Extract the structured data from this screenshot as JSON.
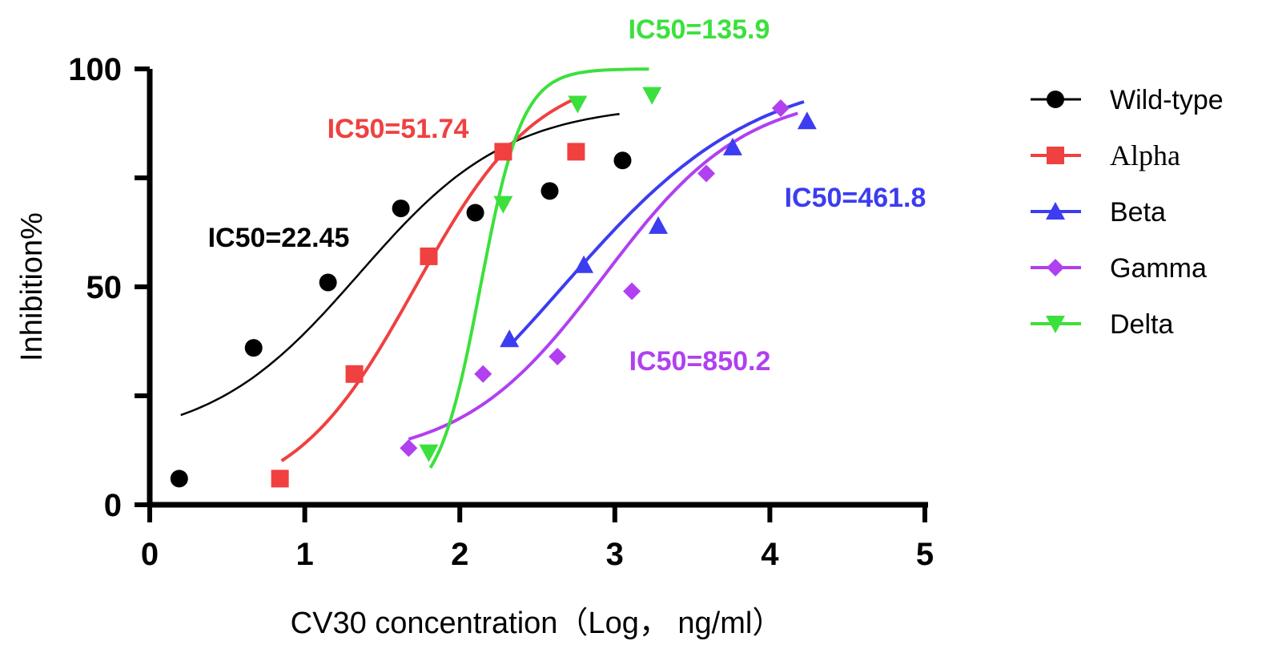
{
  "chart_data": {
    "type": "scatter",
    "title": "",
    "xlabel": "CV30 concentration（Log， ng/ml）",
    "ylabel": "Inhibition%",
    "xlim": [
      0,
      5
    ],
    "ylim": [
      0,
      100
    ],
    "x_ticks": [
      "0",
      "1",
      "2",
      "3",
      "4",
      "5"
    ],
    "y_ticks": [
      "0",
      "50",
      "100"
    ],
    "grid": false,
    "legend_position": "right",
    "series": [
      {
        "name": "Wild-type",
        "color": "#000000",
        "marker": "circle",
        "x": [
          0.19,
          0.67,
          1.15,
          1.62,
          2.1,
          2.58,
          3.05
        ],
        "y": [
          6,
          36,
          51,
          68,
          67,
          72,
          79
        ],
        "fit": {
          "bottom": 14,
          "top": 92,
          "logIC50": 1.351,
          "hill": 0.9,
          "xrange": [
            0.2,
            3.03
          ]
        },
        "ic50_label": "IC50=22.45"
      },
      {
        "name": "Alpha",
        "color": "#f04040",
        "marker": "square",
        "x": [
          0.84,
          1.32,
          1.8,
          2.28,
          2.75
        ],
        "y": [
          6,
          30,
          57,
          81,
          81
        ],
        "fit": {
          "bottom": 0,
          "top": 100,
          "logIC50": 1.714,
          "hill": 1.1,
          "xrange": [
            0.85,
            2.73
          ]
        },
        "ic50_label": "IC50=51.74"
      },
      {
        "name": "Beta",
        "color": "#3c3cf0",
        "marker": "triangle-up",
        "x": [
          2.32,
          2.8,
          3.28,
          3.76,
          4.24
        ],
        "y": [
          38,
          55,
          64,
          82,
          88
        ],
        "fit": {
          "bottom": 0,
          "top": 100,
          "logIC50": 2.664,
          "hill": 0.7,
          "xrange": [
            2.32,
            4.22
          ]
        },
        "ic50_label": "IC50=461.8"
      },
      {
        "name": "Gamma",
        "color": "#b040f0",
        "marker": "diamond",
        "x": [
          1.67,
          2.15,
          2.63,
          3.11,
          3.59,
          4.07
        ],
        "y": [
          13,
          30,
          34,
          49,
          76,
          91
        ],
        "fit": {
          "bottom": 10,
          "top": 95,
          "logIC50": 2.93,
          "hill": 0.95,
          "xrange": [
            1.67,
            4.18
          ]
        },
        "ic50_label": "IC50=850.2"
      },
      {
        "name": "Delta",
        "color": "#3ce03c",
        "marker": "triangle-down",
        "x": [
          1.8,
          2.28,
          2.76,
          3.24
        ],
        "y": [
          12,
          69,
          92,
          94
        ],
        "fit": {
          "bottom": 0,
          "top": 100,
          "logIC50": 2.133,
          "hill": 3.2,
          "xrange": [
            1.81,
            3.22
          ]
        },
        "ic50_label": "IC50=135.9"
      }
    ]
  }
}
